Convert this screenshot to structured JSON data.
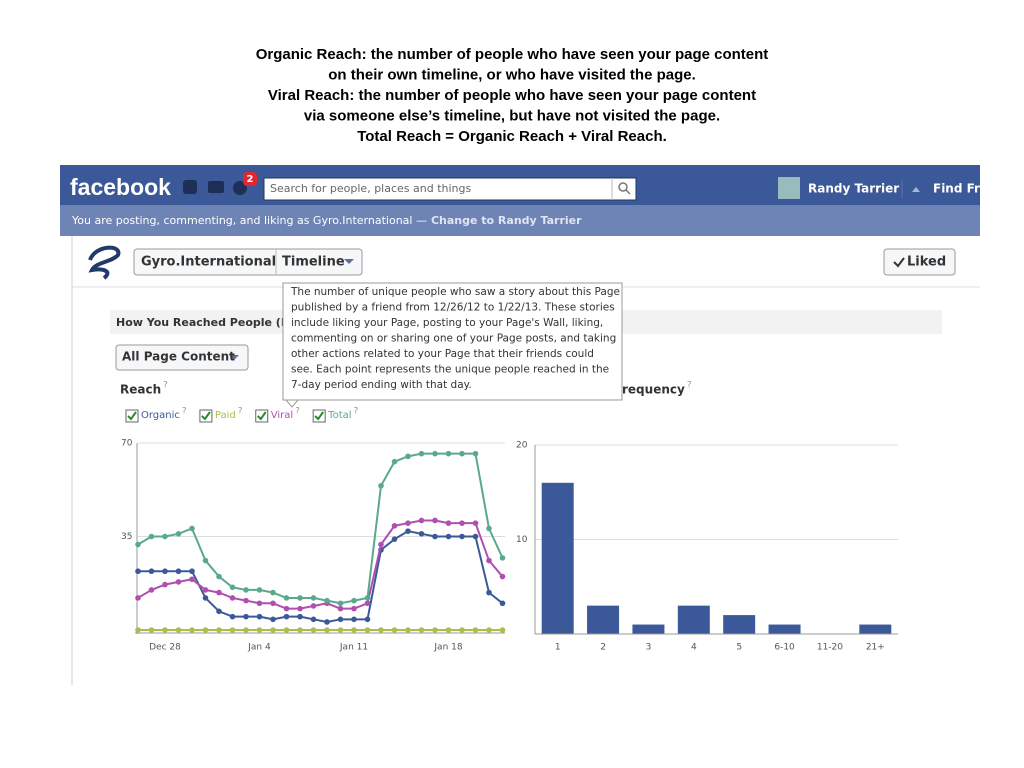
{
  "caption": [
    "Organic Reach: the number of people who have seen your page content",
    "on their own timeline, or who have visited the page.",
    "Viral Reach: the number of people who have seen your page content",
    "via someone else’s timeline, but have not visited the page.",
    "Total Reach = Organic Reach + Viral Reach."
  ],
  "topbar": {
    "logo": "facebook",
    "notifications": "2",
    "search_placeholder": "Search for people, places and things",
    "user": "Randy Tarrier",
    "find": "Find Fri"
  },
  "notice": {
    "text": "You are posting, commenting, and liking as Gyro.International —",
    "link": "Change to Randy Tarrier"
  },
  "page_header": {
    "name": "Gyro.International",
    "tab": "Timeline",
    "liked": "Liked"
  },
  "section": {
    "title": "How You Reached People (R",
    "filter": "All Page Content",
    "reach_label": "Reach",
    "frequency_label": "requency",
    "help": "?"
  },
  "tooltip": [
    "The number of unique people who saw a story about this Page",
    "published by a friend from 12/26/12 to 1/22/13. These stories",
    "include liking your Page, posting to your Page's Wall, liking,",
    "commenting on or sharing one of your Page posts, and taking",
    "other actions related to your Page that their friends could",
    "see. Each point represents the unique people reached in the",
    "7-day period ending with that day."
  ],
  "chart_data": [
    {
      "type": "line",
      "categories": [
        null,
        null,
        "Dec 28",
        null,
        null,
        null,
        null,
        null,
        null,
        "Jan 4",
        null,
        null,
        null,
        null,
        null,
        null,
        "Jan 11",
        null,
        null,
        null,
        null,
        null,
        null,
        "Jan 18",
        null,
        null,
        null,
        null
      ],
      "series": [
        {
          "name": "Organic",
          "color": "#3b5998",
          "values": [
            22,
            22,
            22,
            22,
            22,
            12,
            7,
            5,
            5,
            5,
            4,
            5,
            5,
            4,
            3,
            4,
            4,
            4,
            30,
            34,
            37,
            36,
            35,
            35,
            35,
            35,
            14,
            10
          ]
        },
        {
          "name": "Paid",
          "color": "#a8c04a",
          "values": [
            0,
            0,
            0,
            0,
            0,
            0,
            0,
            0,
            0,
            0,
            0,
            0,
            0,
            0,
            0,
            0,
            0,
            0,
            0,
            0,
            0,
            0,
            0,
            0,
            0,
            0,
            0,
            0
          ]
        },
        {
          "name": "Viral",
          "color": "#b04fb0",
          "values": [
            12,
            15,
            17,
            18,
            19,
            15,
            14,
            12,
            11,
            10,
            10,
            8,
            8,
            9,
            10,
            8,
            8,
            10,
            32,
            39,
            40,
            41,
            41,
            40,
            40,
            40,
            26,
            20
          ]
        },
        {
          "name": "Total",
          "color": "#5aa98f",
          "values": [
            32,
            35,
            35,
            36,
            38,
            26,
            20,
            16,
            15,
            15,
            14,
            12,
            12,
            12,
            11,
            10,
            11,
            12,
            54,
            63,
            65,
            66,
            66,
            66,
            66,
            66,
            38,
            27
          ]
        }
      ],
      "ylim": [
        0,
        70
      ],
      "yticks": [
        35,
        70
      ],
      "grid": true
    },
    {
      "type": "bar",
      "categories": [
        "1",
        "2",
        "3",
        "4",
        "5",
        "6-10",
        "11-20",
        "21+"
      ],
      "values": [
        16,
        3,
        1,
        3,
        2,
        1,
        0,
        1
      ],
      "color": "#3b5998",
      "ylim": [
        0,
        20
      ],
      "yticks": [
        10,
        20
      ],
      "grid": true
    }
  ]
}
